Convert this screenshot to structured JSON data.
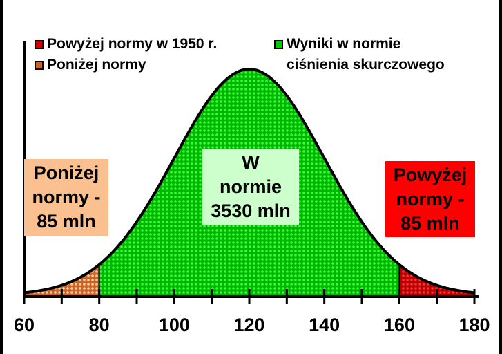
{
  "chart_data": {
    "type": "area",
    "title": "",
    "distribution": "normal",
    "mean": 120,
    "sd": 20,
    "xlim": [
      60,
      180
    ],
    "x_ticks": [
      60,
      80,
      100,
      120,
      140,
      160,
      180
    ],
    "x_tick_labels": [
      "60",
      "80",
      "100",
      "120",
      "140",
      "160",
      "180"
    ],
    "minor_tick_step": 10,
    "regions": [
      {
        "name": "below",
        "from": 60,
        "to": 80,
        "color": "#c8642a",
        "dot": "#ffcc99"
      },
      {
        "name": "normal",
        "from": 80,
        "to": 160,
        "color": "#00b400",
        "dot": "#33ff33"
      },
      {
        "name": "above",
        "from": 160,
        "to": 180,
        "color": "#b40000",
        "dot": "#ff3333"
      }
    ],
    "legend": [
      {
        "label": "Powyżej normy w 1950 r.",
        "color": "#cc0000"
      },
      {
        "label": "Poniżej normy",
        "color": "#c8642a"
      },
      {
        "label": "Wyniki w normie",
        "label2": "ciśnienia skurczowego",
        "color": "#00cc00"
      }
    ],
    "annotations": {
      "below": {
        "lines": [
          "Poniżej",
          "normy -",
          "85 mln"
        ],
        "bg": "#fac090"
      },
      "normal": {
        "lines": [
          "W",
          "normie",
          "3530 mln"
        ],
        "bg": "#ccffcc"
      },
      "above": {
        "lines": [
          "Powyżej",
          "normy -",
          "85 mln"
        ],
        "bg": "#ff0000"
      }
    }
  }
}
